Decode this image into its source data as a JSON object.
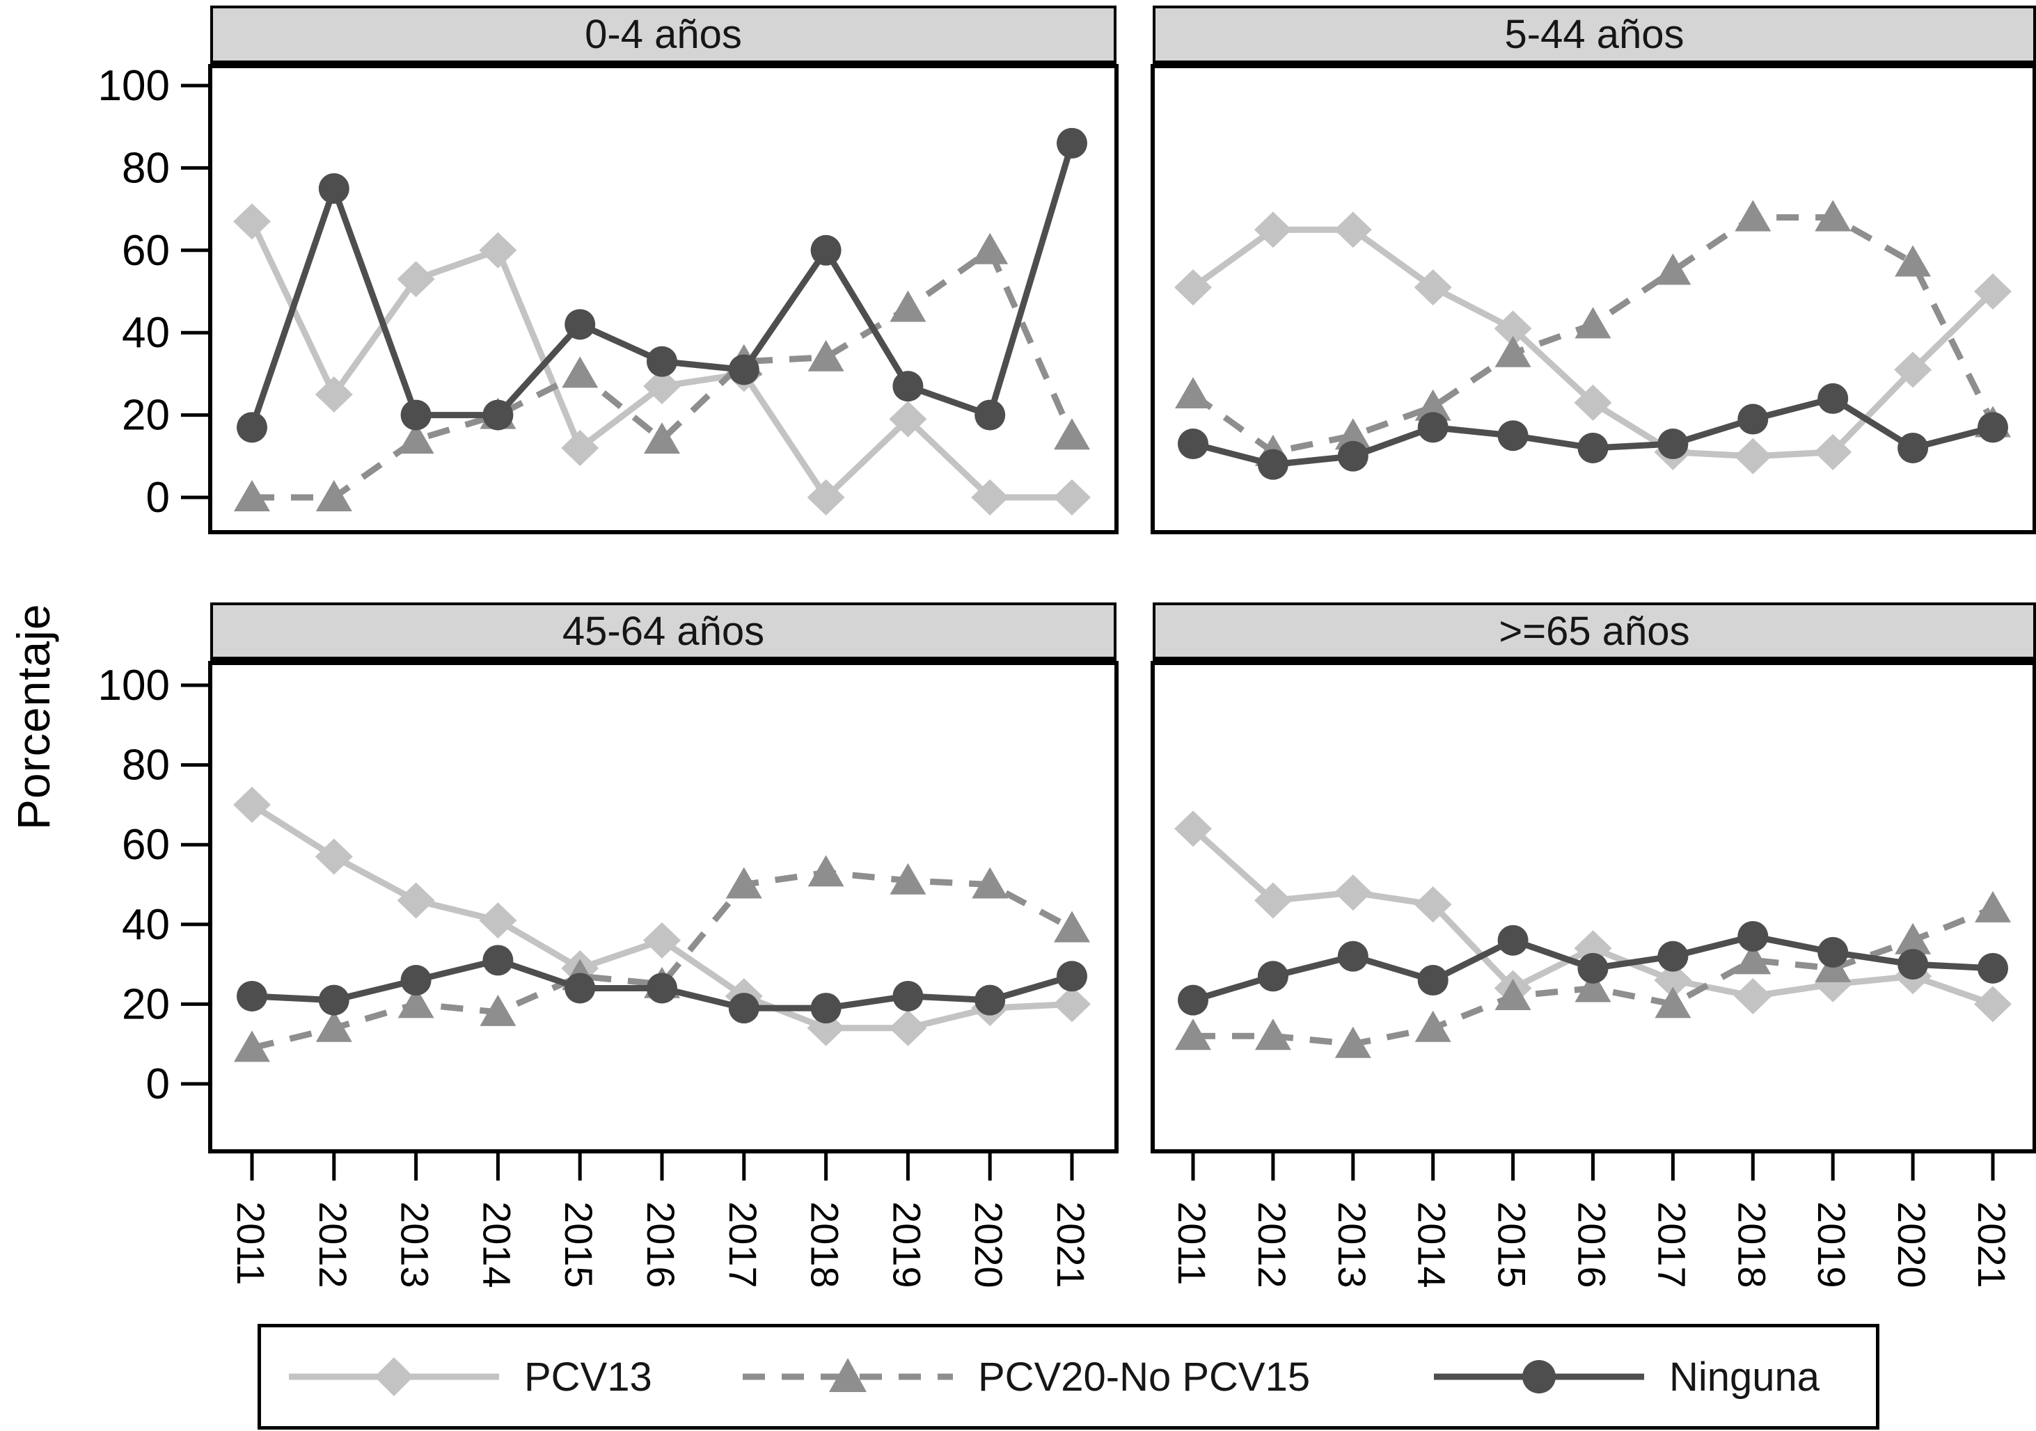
{
  "ylabel": "Porcentaje",
  "colors": {
    "pcv13": "#c3c3c3",
    "pcv20": "#8e8e8e",
    "ninguna": "#4e4e4e",
    "header_bg": "#d5d5d5",
    "frame": "#000000"
  },
  "legend": [
    {
      "label": "PCV13",
      "marker": "diamond",
      "dashed": false
    },
    {
      "label": "PCV20-No PCV15",
      "marker": "triangle",
      "dashed": true
    },
    {
      "label": "Ninguna",
      "marker": "circle",
      "dashed": false
    }
  ],
  "chart_data": [
    {
      "type": "line",
      "title": "0-4 años",
      "categories": [
        "2011",
        "2012",
        "2013",
        "2014",
        "2015",
        "2016",
        "2017",
        "2018",
        "2019",
        "2020",
        "2021"
      ],
      "ylabel": "Porcentaje",
      "ylim": [
        0,
        100
      ],
      "yticks": [
        0,
        20,
        40,
        60,
        80,
        100
      ],
      "grid": false,
      "series": [
        {
          "name": "PCV13",
          "marker": "diamond",
          "dashed": false,
          "values": [
            67,
            25,
            53,
            60,
            12,
            27,
            30,
            0,
            19,
            0,
            0
          ]
        },
        {
          "name": "PCV20-No PCV15",
          "marker": "triangle",
          "dashed": true,
          "values": [
            0,
            0,
            14,
            20,
            30,
            14,
            33,
            34,
            46,
            60,
            15
          ]
        },
        {
          "name": "Ninguna",
          "marker": "circle",
          "dashed": false,
          "values": [
            17,
            75,
            20,
            20,
            42,
            33,
            31,
            60,
            27,
            20,
            86
          ]
        }
      ]
    },
    {
      "type": "line",
      "title": "5-44 años",
      "categories": [
        "2011",
        "2012",
        "2013",
        "2014",
        "2015",
        "2016",
        "2017",
        "2018",
        "2019",
        "2020",
        "2021"
      ],
      "ylabel": "Porcentaje",
      "ylim": [
        0,
        100
      ],
      "yticks": [
        0,
        20,
        40,
        60,
        80,
        100
      ],
      "grid": false,
      "series": [
        {
          "name": "PCV13",
          "marker": "diamond",
          "dashed": false,
          "values": [
            51,
            65,
            65,
            51,
            41,
            23,
            11,
            10,
            11,
            31,
            50
          ]
        },
        {
          "name": "PCV20-No PCV15",
          "marker": "triangle",
          "dashed": true,
          "values": [
            25,
            11,
            15,
            22,
            35,
            42,
            55,
            68,
            68,
            57,
            18
          ]
        },
        {
          "name": "Ninguna",
          "marker": "circle",
          "dashed": false,
          "values": [
            13,
            8,
            10,
            17,
            15,
            12,
            13,
            19,
            24,
            12,
            17
          ]
        }
      ]
    },
    {
      "type": "line",
      "title": "45-64 años",
      "categories": [
        "2011",
        "2012",
        "2013",
        "2014",
        "2015",
        "2016",
        "2017",
        "2018",
        "2019",
        "2020",
        "2021"
      ],
      "ylabel": "Porcentaje",
      "ylim": [
        0,
        100
      ],
      "yticks": [
        0,
        20,
        40,
        60,
        80,
        100
      ],
      "grid": false,
      "series": [
        {
          "name": "PCV13",
          "marker": "diamond",
          "dashed": false,
          "values": [
            70,
            57,
            46,
            41,
            29,
            36,
            22,
            14,
            14,
            19,
            20
          ]
        },
        {
          "name": "PCV20-No PCV15",
          "marker": "triangle",
          "dashed": true,
          "values": [
            9,
            14,
            20,
            18,
            27,
            25,
            50,
            53,
            51,
            50,
            39
          ]
        },
        {
          "name": "Ninguna",
          "marker": "circle",
          "dashed": false,
          "values": [
            22,
            21,
            26,
            31,
            24,
            24,
            19,
            19,
            22,
            21,
            27
          ]
        }
      ]
    },
    {
      "type": "line",
      "title": ">=65 años",
      "categories": [
        "2011",
        "2012",
        "2013",
        "2014",
        "2015",
        "2016",
        "2017",
        "2018",
        "2019",
        "2020",
        "2021"
      ],
      "ylabel": "Porcentaje",
      "ylim": [
        0,
        100
      ],
      "yticks": [
        0,
        20,
        40,
        60,
        80,
        100
      ],
      "grid": false,
      "series": [
        {
          "name": "PCV13",
          "marker": "diamond",
          "dashed": false,
          "values": [
            64,
            46,
            48,
            45,
            24,
            34,
            26,
            22,
            25,
            27,
            20
          ]
        },
        {
          "name": "PCV20-No PCV15",
          "marker": "triangle",
          "dashed": true,
          "values": [
            12,
            12,
            10,
            14,
            22,
            24,
            20,
            31,
            29,
            36,
            44
          ]
        },
        {
          "name": "Ninguna",
          "marker": "circle",
          "dashed": false,
          "values": [
            21,
            27,
            32,
            26,
            36,
            29,
            32,
            37,
            33,
            30,
            29
          ]
        }
      ]
    }
  ]
}
